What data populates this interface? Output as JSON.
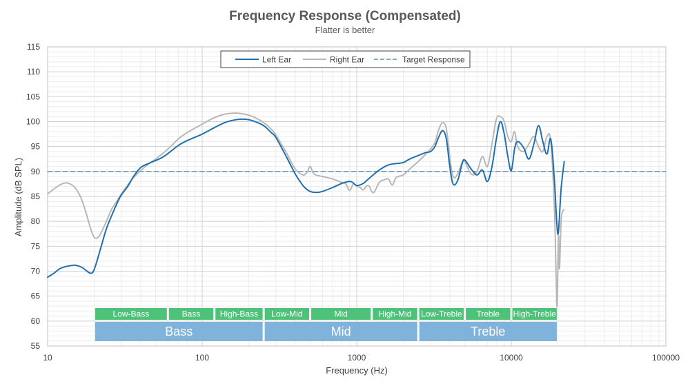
{
  "chart_data": {
    "type": "line",
    "title": "Frequency Response (Compensated)",
    "subtitle": "Flatter is better",
    "xlabel": "Frequency (Hz)",
    "ylabel": "Amplitude (dB SPL)",
    "xscale": "log",
    "xlim": [
      10,
      100000
    ],
    "ylim": [
      55,
      115
    ],
    "x_ticks": [
      10,
      100,
      1000,
      10000,
      100000
    ],
    "x_tick_labels": [
      "10",
      "100",
      "1000",
      "10000",
      "100000"
    ],
    "y_ticks": [
      55,
      60,
      65,
      70,
      75,
      80,
      85,
      90,
      95,
      100,
      105,
      110,
      115
    ],
    "legend_position": "top-center",
    "series": [
      {
        "name": "Left Ear",
        "color": "#1f6fad",
        "style": "solid",
        "points": [
          [
            10,
            68.8
          ],
          [
            11,
            69.6
          ],
          [
            12,
            70.5
          ],
          [
            13,
            70.9
          ],
          [
            14,
            71.1
          ],
          [
            15,
            71.2
          ],
          [
            16,
            71.0
          ],
          [
            17,
            70.6
          ],
          [
            18,
            70.0
          ],
          [
            19,
            69.6
          ],
          [
            20,
            70.3
          ],
          [
            22,
            74.5
          ],
          [
            24,
            78.5
          ],
          [
            26,
            81.2
          ],
          [
            28,
            83.5
          ],
          [
            30,
            85.3
          ],
          [
            33,
            87.0
          ],
          [
            36,
            89.0
          ],
          [
            40,
            90.8
          ],
          [
            45,
            91.6
          ],
          [
            50,
            92.2
          ],
          [
            55,
            92.8
          ],
          [
            60,
            93.6
          ],
          [
            70,
            95.2
          ],
          [
            80,
            96.2
          ],
          [
            100,
            97.5
          ],
          [
            120,
            98.8
          ],
          [
            140,
            99.8
          ],
          [
            160,
            100.3
          ],
          [
            180,
            100.5
          ],
          [
            200,
            100.4
          ],
          [
            220,
            100.0
          ],
          [
            250,
            99.2
          ],
          [
            280,
            97.8
          ],
          [
            300,
            96.8
          ],
          [
            350,
            93.0
          ],
          [
            400,
            89.5
          ],
          [
            430,
            88.0
          ],
          [
            460,
            86.8
          ],
          [
            500,
            86.0
          ],
          [
            550,
            85.8
          ],
          [
            600,
            86.0
          ],
          [
            700,
            86.8
          ],
          [
            800,
            87.6
          ],
          [
            900,
            88.0
          ],
          [
            950,
            87.7
          ],
          [
            1000,
            87.2
          ],
          [
            1100,
            87.6
          ],
          [
            1200,
            88.6
          ],
          [
            1400,
            90.3
          ],
          [
            1600,
            91.3
          ],
          [
            1800,
            91.6
          ],
          [
            2000,
            91.8
          ],
          [
            2200,
            92.5
          ],
          [
            2500,
            93.2
          ],
          [
            2800,
            93.8
          ],
          [
            3000,
            94.0
          ],
          [
            3200,
            95.0
          ],
          [
            3400,
            97.0
          ],
          [
            3600,
            98.2
          ],
          [
            3800,
            96.5
          ],
          [
            4000,
            91.0
          ],
          [
            4200,
            87.5
          ],
          [
            4500,
            88.2
          ],
          [
            4800,
            91.5
          ],
          [
            5000,
            92.3
          ],
          [
            5500,
            90.5
          ],
          [
            6000,
            89.3
          ],
          [
            6500,
            90.3
          ],
          [
            7000,
            88.0
          ],
          [
            7500,
            91.0
          ],
          [
            8000,
            96.5
          ],
          [
            8500,
            100.0
          ],
          [
            9000,
            97.5
          ],
          [
            9500,
            93.0
          ],
          [
            10000,
            90.2
          ],
          [
            10500,
            94.5
          ],
          [
            11000,
            96.0
          ],
          [
            12000,
            94.8
          ],
          [
            13000,
            92.5
          ],
          [
            14000,
            95.5
          ],
          [
            15000,
            99.2
          ],
          [
            16000,
            96.0
          ],
          [
            17000,
            93.5
          ],
          [
            18000,
            96.5
          ],
          [
            19000,
            88.5
          ],
          [
            19700,
            79.5
          ],
          [
            20200,
            78.0
          ],
          [
            21000,
            86.5
          ],
          [
            22000,
            92.0
          ]
        ]
      },
      {
        "name": "Right Ear",
        "color": "#b7b7b7",
        "style": "solid",
        "points": [
          [
            10,
            85.5
          ],
          [
            11,
            86.5
          ],
          [
            12,
            87.3
          ],
          [
            13,
            87.7
          ],
          [
            14,
            87.5
          ],
          [
            15,
            86.8
          ],
          [
            16,
            85.5
          ],
          [
            17,
            83.5
          ],
          [
            18,
            81.0
          ],
          [
            19,
            78.5
          ],
          [
            20,
            76.8
          ],
          [
            21,
            76.7
          ],
          [
            22,
            77.5
          ],
          [
            24,
            80.0
          ],
          [
            26,
            82.5
          ],
          [
            28,
            84.0
          ],
          [
            30,
            85.5
          ],
          [
            33,
            87.3
          ],
          [
            36,
            88.8
          ],
          [
            40,
            90.2
          ],
          [
            45,
            91.5
          ],
          [
            50,
            92.5
          ],
          [
            55,
            93.5
          ],
          [
            60,
            94.5
          ],
          [
            70,
            96.5
          ],
          [
            80,
            97.8
          ],
          [
            100,
            99.5
          ],
          [
            120,
            100.8
          ],
          [
            140,
            101.5
          ],
          [
            160,
            101.7
          ],
          [
            180,
            101.6
          ],
          [
            200,
            101.3
          ],
          [
            220,
            100.8
          ],
          [
            250,
            99.8
          ],
          [
            280,
            98.5
          ],
          [
            300,
            97.3
          ],
          [
            350,
            93.8
          ],
          [
            400,
            90.5
          ],
          [
            450,
            89.3
          ],
          [
            480,
            90.0
          ],
          [
            500,
            91.0
          ],
          [
            530,
            89.5
          ],
          [
            600,
            89.0
          ],
          [
            700,
            88.5
          ],
          [
            800,
            87.8
          ],
          [
            850,
            87.5
          ],
          [
            900,
            86.2
          ],
          [
            950,
            87.5
          ],
          [
            1000,
            87.0
          ],
          [
            1050,
            86.8
          ],
          [
            1100,
            86.3
          ],
          [
            1150,
            87.0
          ],
          [
            1200,
            87.1
          ],
          [
            1250,
            86.0
          ],
          [
            1300,
            85.9
          ],
          [
            1400,
            87.8
          ],
          [
            1500,
            88.3
          ],
          [
            1600,
            88.5
          ],
          [
            1700,
            87.3
          ],
          [
            1800,
            88.8
          ],
          [
            2000,
            89.3
          ],
          [
            2200,
            90.5
          ],
          [
            2500,
            92.0
          ],
          [
            2800,
            93.5
          ],
          [
            3000,
            94.5
          ],
          [
            3200,
            95.8
          ],
          [
            3400,
            98.5
          ],
          [
            3600,
            99.8
          ],
          [
            3800,
            98.5
          ],
          [
            4000,
            93.0
          ],
          [
            4200,
            89.0
          ],
          [
            4500,
            89.5
          ],
          [
            4800,
            91.8
          ],
          [
            5000,
            92.0
          ],
          [
            5500,
            89.5
          ],
          [
            6000,
            90.0
          ],
          [
            6500,
            93.0
          ],
          [
            7000,
            91.0
          ],
          [
            7500,
            95.5
          ],
          [
            8000,
            100.5
          ],
          [
            8500,
            101.0
          ],
          [
            9000,
            100.0
          ],
          [
            9500,
            97.0
          ],
          [
            10000,
            96.0
          ],
          [
            10500,
            98.0
          ],
          [
            11000,
            95.0
          ],
          [
            12000,
            94.0
          ],
          [
            13000,
            95.5
          ],
          [
            14000,
            97.0
          ],
          [
            15000,
            95.0
          ],
          [
            16000,
            94.0
          ],
          [
            17000,
            97.0
          ],
          [
            18000,
            96.0
          ],
          [
            19000,
            83.0
          ],
          [
            19500,
            69.0
          ],
          [
            19800,
            63.2
          ],
          [
            20200,
            77.0
          ],
          [
            20500,
            70.5
          ],
          [
            21000,
            80.0
          ],
          [
            21500,
            82.0
          ],
          [
            22000,
            82.3
          ]
        ]
      },
      {
        "name": "Target Response",
        "color": "#5b8fb5",
        "style": "dashed",
        "points": [
          [
            10,
            90
          ],
          [
            100000,
            90
          ]
        ]
      }
    ],
    "bands": [
      {
        "label": "Low-Bass",
        "from": 20,
        "to": 60
      },
      {
        "label": "Bass",
        "from": 60,
        "to": 120
      },
      {
        "label": "High-Bass",
        "from": 120,
        "to": 250
      },
      {
        "label": "Low-Mid",
        "from": 250,
        "to": 500
      },
      {
        "label": "Mid",
        "from": 500,
        "to": 1250
      },
      {
        "label": "High-Mid",
        "from": 1250,
        "to": 2500
      },
      {
        "label": "Low-Treble",
        "from": 2500,
        "to": 5000
      },
      {
        "label": "Treble",
        "from": 5000,
        "to": 10000
      },
      {
        "label": "High-Treble",
        "from": 10000,
        "to": 20000
      }
    ],
    "band_color": "#4fc27a",
    "groups": [
      {
        "label": "Bass",
        "from": 20,
        "to": 250
      },
      {
        "label": "Mid",
        "from": 250,
        "to": 2500
      },
      {
        "label": "Treble",
        "from": 2500,
        "to": 20000
      }
    ],
    "group_color": "#7fb3db"
  }
}
